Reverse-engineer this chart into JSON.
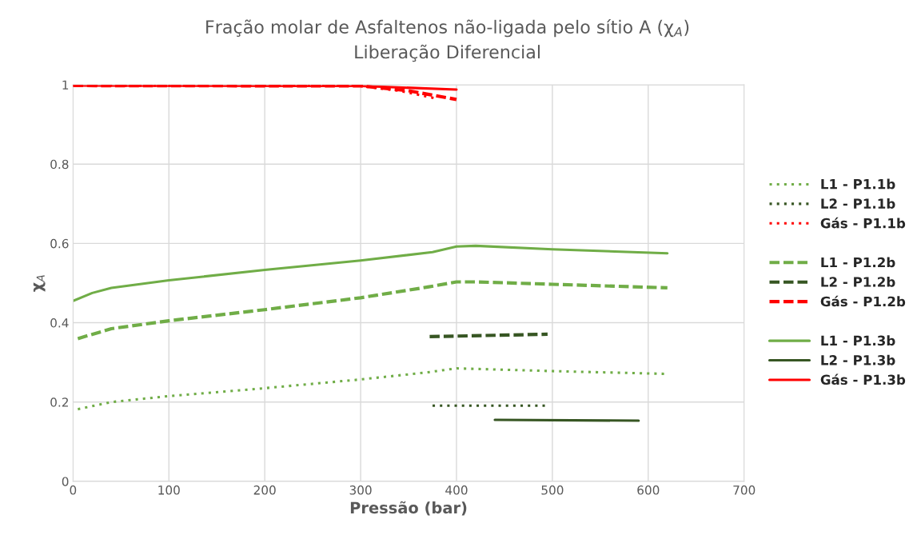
{
  "chart_data": {
    "type": "line",
    "title": "Fração molar de Asfaltenos não-ligada pelo sítio A (χ$_{A}$)",
    "subtitle": "Liberação Diferencial",
    "xlabel": "Pressão (bar)",
    "ylabel": "χ$_{A}$",
    "xlim": [
      0,
      700
    ],
    "xticks": [
      0,
      100,
      200,
      300,
      400,
      500,
      600,
      700
    ],
    "ylim": [
      0,
      1
    ],
    "yticks": [
      0,
      0.2,
      0.4,
      0.6,
      0.8,
      1
    ],
    "grid": true,
    "legend": "right",
    "marker": "none",
    "series": [
      {
        "name": "L1 - P1.1b",
        "color": "#70ad47",
        "line_style": "dotted",
        "x": [
          5,
          40,
          100,
          200,
          300,
          370,
          400,
          500,
          620
        ],
        "values": [
          0.182,
          0.2,
          0.215,
          0.235,
          0.257,
          0.275,
          0.285,
          0.278,
          0.271
        ]
      },
      {
        "name": "L2 - P1.1b",
        "color": "#375623",
        "line_style": "dotted",
        "x": [
          375,
          495
        ],
        "values": [
          0.191,
          0.191
        ]
      },
      {
        "name": "Gás - P1.1b",
        "color": "#ff0000",
        "line_style": "dotted",
        "x": [
          0,
          300,
          340,
          380
        ],
        "values": [
          0.998,
          0.997,
          0.985,
          0.965
        ]
      },
      {
        "name": "L1 - P1.2b",
        "color": "#70ad47",
        "line_style": "dashed",
        "x": [
          5,
          40,
          100,
          200,
          300,
          370,
          400,
          420,
          500,
          620
        ],
        "values": [
          0.36,
          0.385,
          0.405,
          0.433,
          0.463,
          0.49,
          0.503,
          0.503,
          0.497,
          0.488
        ]
      },
      {
        "name": "L2 - P1.2b",
        "color": "#375623",
        "line_style": "dashed",
        "x": [
          372,
          495
        ],
        "values": [
          0.365,
          0.371
        ]
      },
      {
        "name": "Gás - P1.2b",
        "color": "#ff0000",
        "line_style": "dashed",
        "x": [
          0,
          300,
          350,
          400
        ],
        "values": [
          0.998,
          0.997,
          0.985,
          0.963
        ]
      },
      {
        "name": "L1 - P1.3b",
        "color": "#70ad47",
        "line_style": "solid",
        "x": [
          0,
          20,
          40,
          100,
          200,
          300,
          375,
          400,
          420,
          500,
          620
        ],
        "values": [
          0.455,
          0.475,
          0.488,
          0.507,
          0.533,
          0.557,
          0.578,
          0.592,
          0.594,
          0.585,
          0.575
        ]
      },
      {
        "name": "L2 - P1.3b",
        "color": "#375623",
        "line_style": "solid",
        "x": [
          440,
          590
        ],
        "values": [
          0.155,
          0.153
        ]
      },
      {
        "name": "Gás - P1.3b",
        "color": "#ff0000",
        "line_style": "solid",
        "x": [
          0,
          300,
          400
        ],
        "values": [
          0.998,
          0.997,
          0.988
        ]
      }
    ]
  }
}
